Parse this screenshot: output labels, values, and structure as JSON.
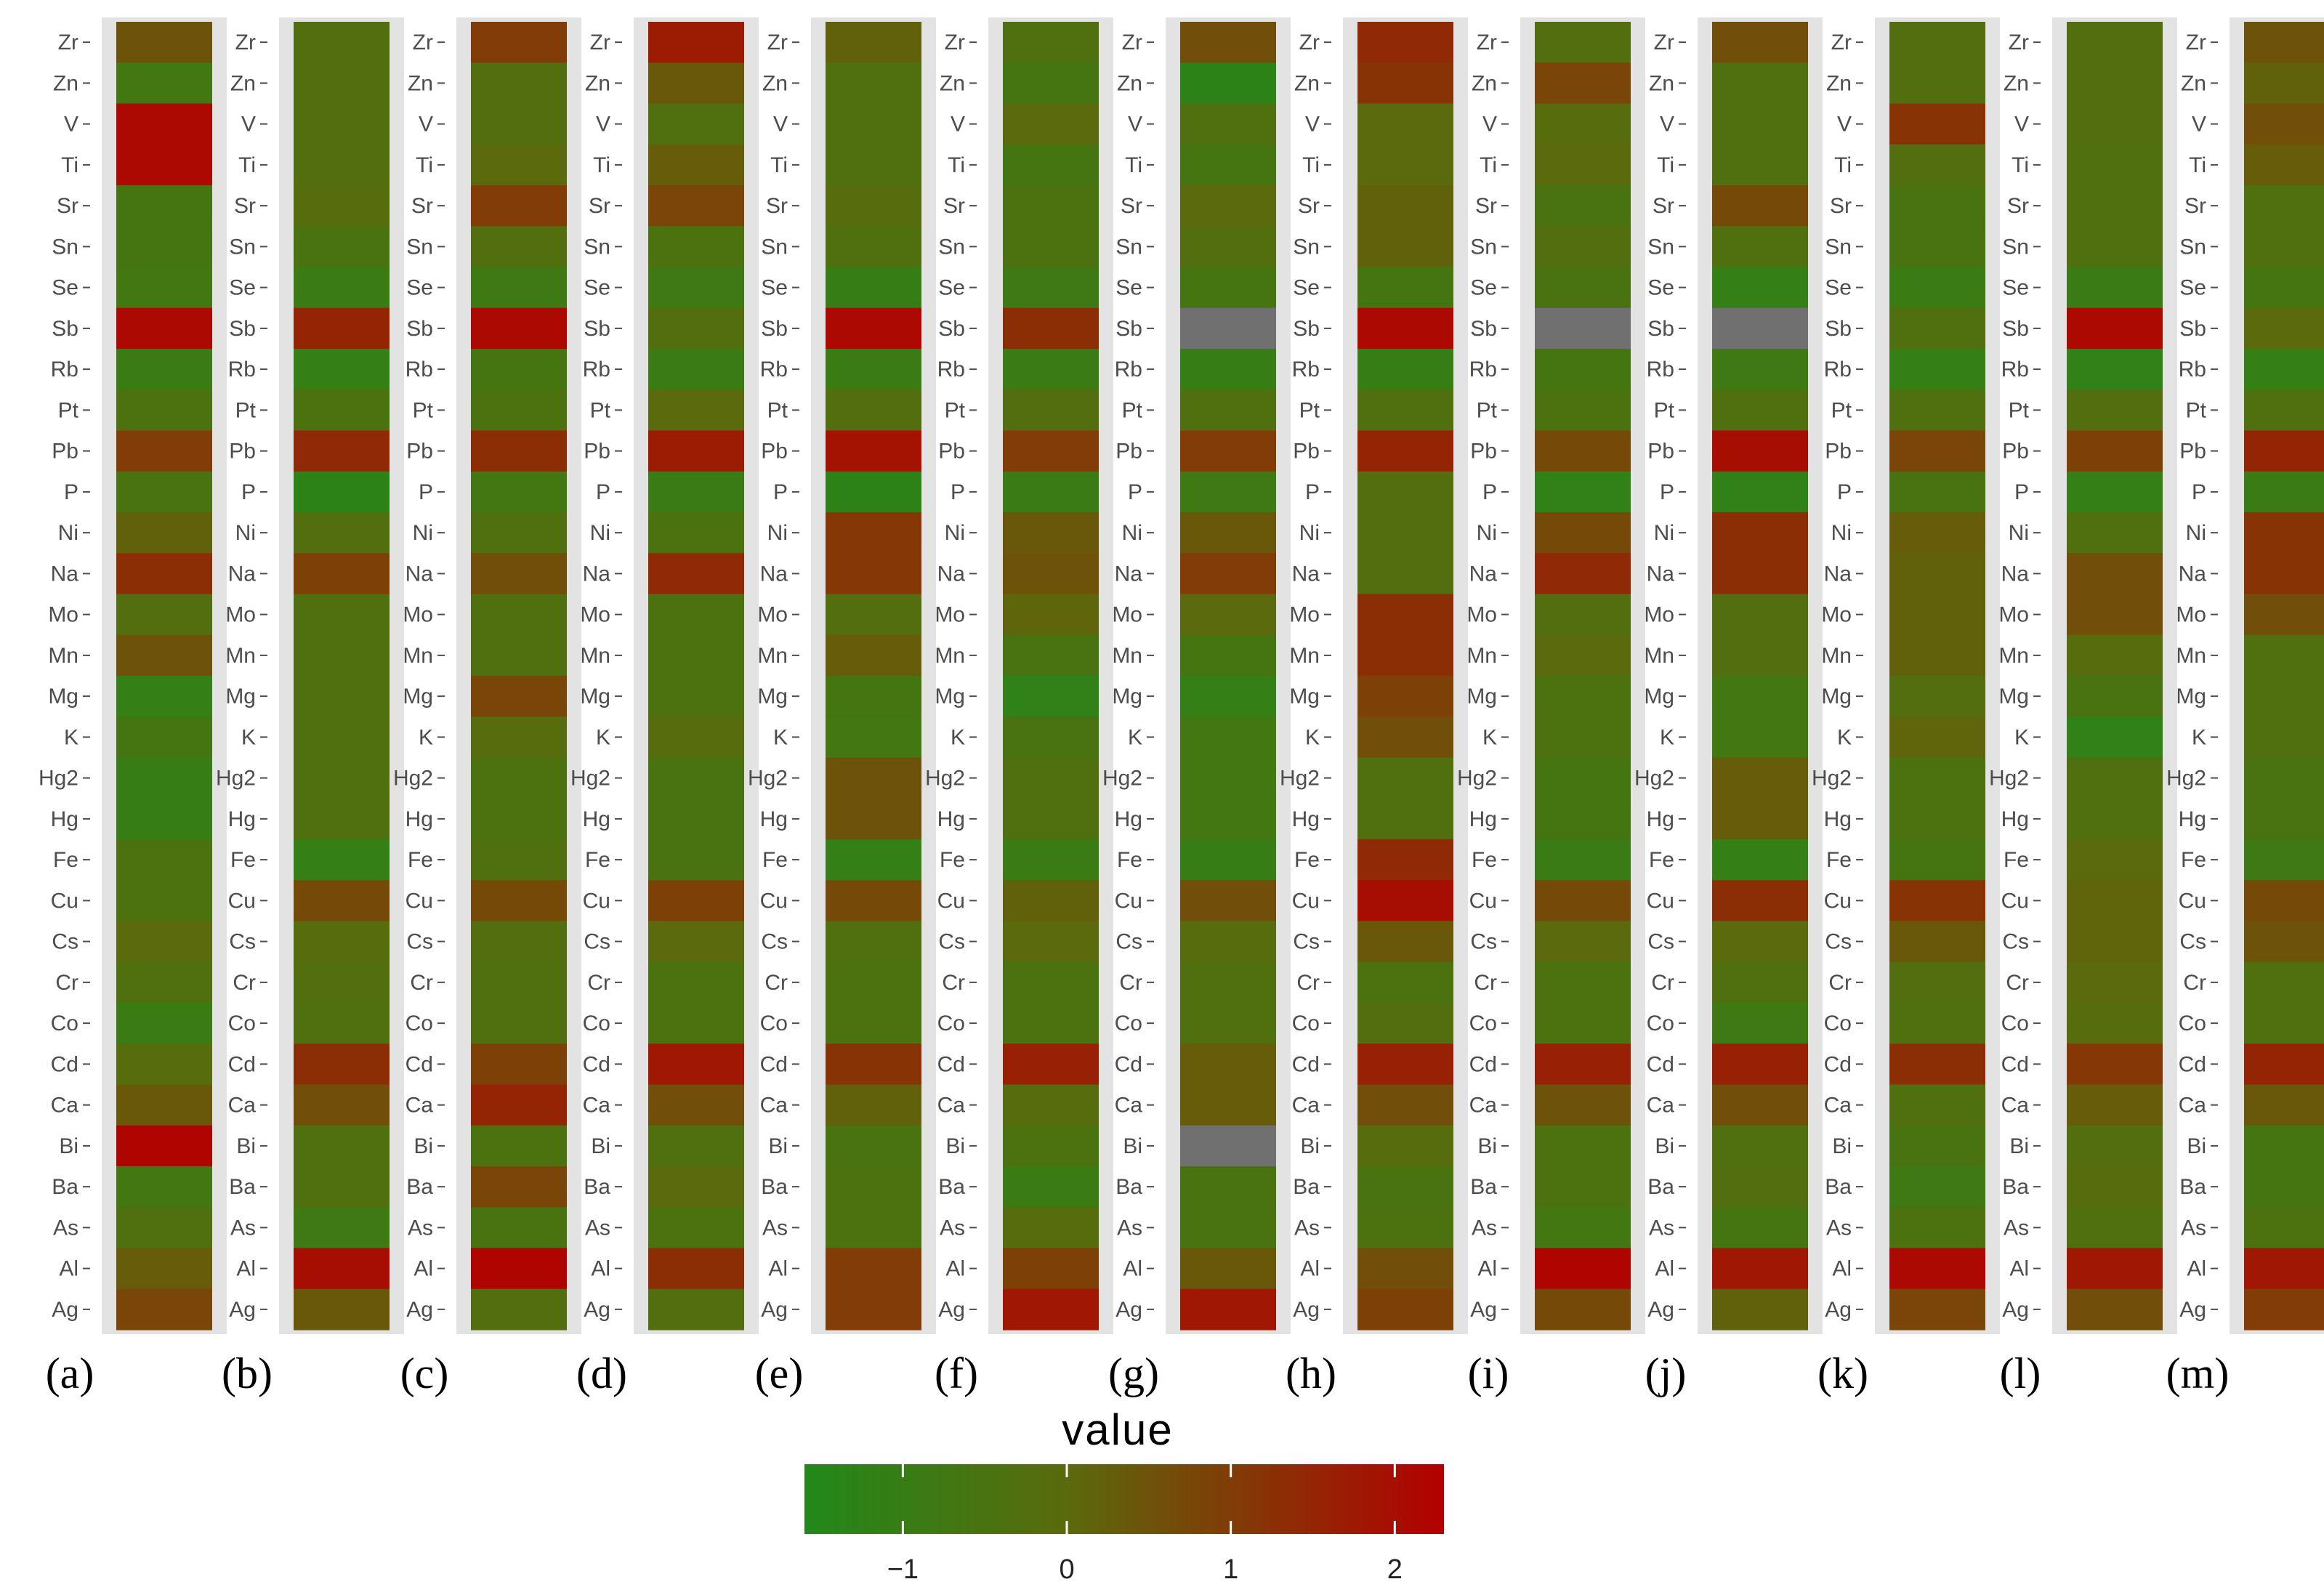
{
  "chart_data": {
    "type": "heatmap",
    "rows": [
      "Zr",
      "Zn",
      "V",
      "Ti",
      "Sr",
      "Sn",
      "Se",
      "Sb",
      "Rb",
      "Pt",
      "Pb",
      "P",
      "Ni",
      "Na",
      "Mo",
      "Mn",
      "Mg",
      "K",
      "Hg2",
      "Hg",
      "Fe",
      "Cu",
      "Cs",
      "Cr",
      "Co",
      "Cd",
      "Ca",
      "Bi",
      "Ba",
      "As",
      "Al",
      "Ag"
    ],
    "panels": [
      {
        "label": "(a)",
        "values": [
          0.5,
          -0.7,
          2.1,
          2.1,
          -0.6,
          -0.6,
          -0.7,
          2.1,
          -0.9,
          -0.4,
          1.0,
          -0.5,
          0.2,
          1.3,
          -0.2,
          0.5,
          -1.1,
          -0.6,
          -1.0,
          -1.0,
          -0.4,
          -0.4,
          0.0,
          -0.3,
          -0.9,
          -0.1,
          0.4,
          2.2,
          -0.7,
          -0.3,
          0.3,
          0.8
        ]
      },
      {
        "label": "(b)",
        "values": [
          -0.2,
          -0.2,
          -0.2,
          -0.2,
          -0.1,
          -0.5,
          -0.9,
          1.5,
          -1.1,
          -0.4,
          1.4,
          -1.3,
          -0.2,
          0.9,
          -0.3,
          -0.3,
          -0.3,
          -0.3,
          -0.3,
          -0.3,
          -1.1,
          0.7,
          -0.1,
          -0.2,
          -0.3,
          1.3,
          0.6,
          -0.3,
          -0.3,
          -0.8,
          2.0,
          0.4
        ]
      },
      {
        "label": "(c)",
        "values": [
          1.0,
          -0.2,
          -0.2,
          0.0,
          1.0,
          -0.2,
          -0.8,
          2.1,
          -0.6,
          -0.4,
          1.3,
          -0.7,
          -0.3,
          0.6,
          -0.3,
          -0.3,
          0.8,
          -0.1,
          -0.4,
          -0.4,
          -0.3,
          0.7,
          -0.2,
          -0.3,
          -0.3,
          0.9,
          1.5,
          -0.4,
          0.8,
          -0.5,
          2.2,
          -0.2
        ]
      },
      {
        "label": "(d)",
        "values": [
          1.7,
          0.4,
          -0.3,
          0.3,
          0.8,
          -0.4,
          -0.8,
          -0.2,
          -0.9,
          0.0,
          1.7,
          -0.9,
          -0.4,
          1.4,
          -0.4,
          -0.4,
          -0.4,
          -0.1,
          -0.5,
          -0.5,
          -0.5,
          0.9,
          0.0,
          -0.4,
          -0.4,
          1.8,
          0.6,
          -0.3,
          0.0,
          -0.4,
          1.3,
          -0.2
        ]
      },
      {
        "label": "(e)",
        "values": [
          0.2,
          -0.3,
          -0.3,
          -0.3,
          -0.1,
          -0.3,
          -1.0,
          2.1,
          -0.9,
          -0.2,
          1.9,
          -1.3,
          1.1,
          1.1,
          -0.2,
          0.3,
          -0.6,
          -0.7,
          0.5,
          0.5,
          -1.1,
          0.7,
          -0.3,
          -0.4,
          -0.4,
          1.2,
          0.2,
          -0.5,
          -0.4,
          -0.4,
          1.0,
          1.0
        ]
      },
      {
        "label": "(f)",
        "values": [
          -0.3,
          -0.6,
          0.0,
          -0.6,
          -0.4,
          -0.4,
          -0.8,
          1.3,
          -0.9,
          -0.2,
          1.0,
          -0.9,
          0.4,
          0.5,
          0.1,
          -0.5,
          -1.2,
          -0.5,
          -0.3,
          -0.3,
          -0.9,
          0.2,
          0.0,
          -0.4,
          -0.4,
          1.6,
          -0.1,
          -0.4,
          -0.9,
          -0.1,
          0.9,
          1.8
        ]
      },
      {
        "label": "(g)",
        "values": [
          0.6,
          -1.3,
          -0.3,
          -0.6,
          0.0,
          -0.2,
          -0.6,
          null,
          -1.0,
          -0.3,
          1.0,
          -0.8,
          0.4,
          1.0,
          0.0,
          -0.6,
          -1.1,
          -0.7,
          -0.7,
          -0.7,
          -1.0,
          0.6,
          -0.1,
          -0.3,
          -0.3,
          0.3,
          0.3,
          null,
          -0.5,
          -0.5,
          0.4,
          1.8
        ]
      },
      {
        "label": "(h)",
        "values": [
          1.4,
          1.2,
          0.0,
          0.0,
          0.2,
          0.2,
          -0.6,
          2.1,
          -1.0,
          -0.3,
          1.5,
          -0.2,
          -0.2,
          -0.2,
          1.3,
          1.3,
          0.9,
          0.6,
          -0.3,
          -0.3,
          1.4,
          2.0,
          0.4,
          -0.4,
          -0.2,
          1.6,
          0.6,
          -0.1,
          -0.5,
          -0.4,
          0.6,
          0.9
        ]
      },
      {
        "label": "(i)",
        "values": [
          -0.2,
          0.8,
          -0.1,
          0.0,
          -0.5,
          -0.2,
          -0.5,
          null,
          -0.6,
          -0.4,
          0.7,
          -1.2,
          0.7,
          1.4,
          -0.2,
          0.0,
          -0.4,
          -0.4,
          -0.6,
          -0.6,
          -0.9,
          0.7,
          0.0,
          -0.4,
          -0.4,
          1.6,
          0.5,
          -0.4,
          -0.4,
          -0.7,
          2.2,
          0.7
        ]
      },
      {
        "label": "(j)",
        "values": [
          0.6,
          -0.3,
          -0.3,
          -0.3,
          0.7,
          -0.3,
          -1.1,
          null,
          -0.8,
          -0.3,
          2.0,
          -1.2,
          1.3,
          1.3,
          -0.2,
          -0.2,
          -0.7,
          -0.7,
          0.3,
          0.3,
          -1.1,
          1.3,
          0.0,
          -0.3,
          -0.8,
          1.6,
          0.6,
          -0.3,
          -0.2,
          -0.6,
          1.8,
          0.2
        ]
      },
      {
        "label": "(k)",
        "values": [
          -0.2,
          -0.2,
          1.2,
          -0.2,
          -0.5,
          -0.5,
          -0.9,
          -0.3,
          -1.1,
          -0.3,
          0.8,
          -0.5,
          0.3,
          0.2,
          0.2,
          0.2,
          -0.2,
          0.1,
          -0.4,
          -0.4,
          -0.6,
          1.2,
          0.4,
          -0.2,
          -0.3,
          1.3,
          -0.3,
          -0.5,
          -0.8,
          -0.4,
          2.1,
          0.8
        ]
      },
      {
        "label": "(l)",
        "values": [
          -0.2,
          -0.2,
          -0.2,
          -0.3,
          -0.3,
          -0.3,
          -0.9,
          2.1,
          -1.2,
          -0.2,
          0.9,
          -1.1,
          -0.3,
          0.6,
          0.6,
          -0.1,
          -0.5,
          -1.2,
          -0.3,
          -0.3,
          0.0,
          0.1,
          0.1,
          0.0,
          -0.1,
          1.1,
          0.3,
          -0.2,
          -0.1,
          -0.3,
          1.8,
          0.6
        ]
      },
      {
        "label": "(m)",
        "values": [
          0.5,
          0.2,
          0.6,
          0.3,
          -0.3,
          -0.3,
          -0.6,
          0.0,
          -1.1,
          -0.3,
          1.5,
          -0.9,
          1.2,
          1.2,
          0.6,
          -0.3,
          -0.3,
          -0.3,
          -0.5,
          -0.5,
          -0.8,
          0.7,
          0.5,
          -0.3,
          -0.3,
          1.5,
          0.4,
          -0.6,
          -0.6,
          -0.4,
          1.8,
          1.0
        ]
      }
    ],
    "missing_value_color": "#707070",
    "colorscale": {
      "low": "#22881a",
      "mid": "#5a6a0c",
      "high": "#b30000",
      "min": -1.6,
      "max": 2.3
    },
    "legend": {
      "title": "value",
      "ticks": [
        -1,
        0,
        1,
        2
      ],
      "tick_labels": [
        "−1",
        "0",
        "1",
        "2"
      ],
      "placement": "bottom-center"
    }
  }
}
